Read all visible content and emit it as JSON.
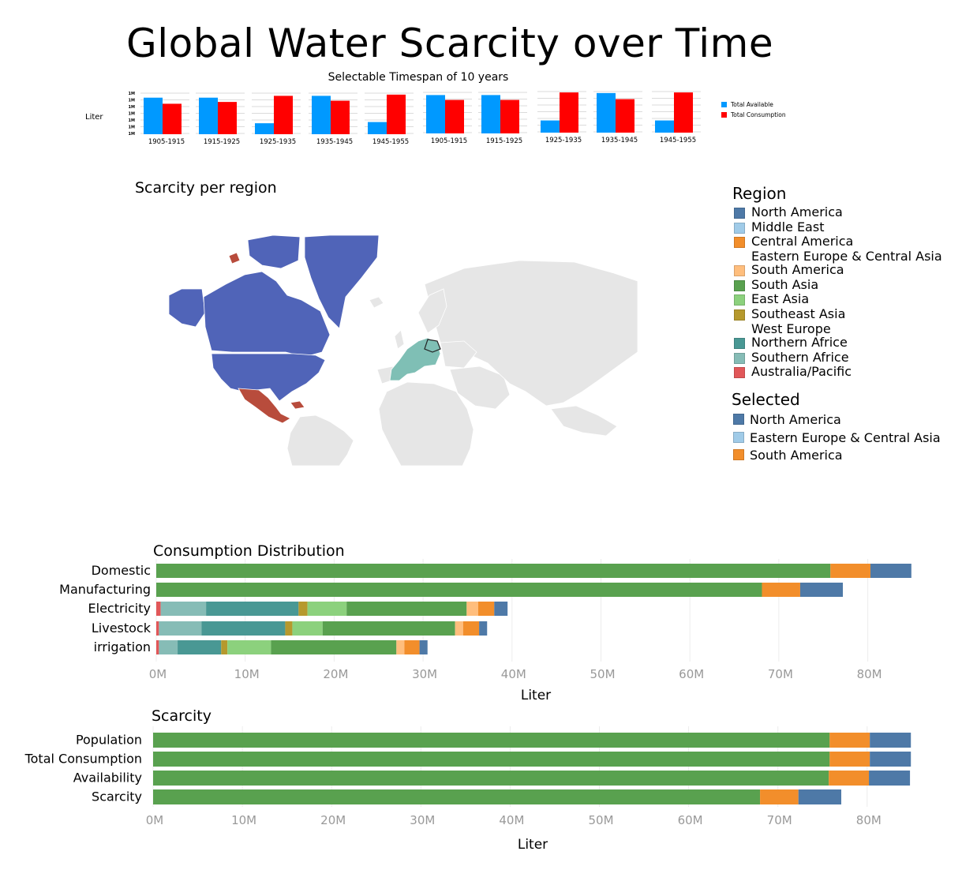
{
  "header": {
    "title": "Global Water Scarcity over Time",
    "timespan_caption": "Selectable Timespan of 10 years"
  },
  "colors": {
    "available": "#0099ff",
    "consumption": "#ff0000",
    "north_america_map": "#5064b8",
    "central_america_map": "#b84c3c",
    "europe_map": "#7fbfb5",
    "map_land": "#e6e6e6"
  },
  "chart_data": [
    {
      "id": "timespans",
      "type": "bar",
      "ylabel": "Liter",
      "ytick_labels": [
        "1M",
        "1M",
        "1M",
        "1M",
        "1M",
        "1M",
        "1M"
      ],
      "categories": [
        "1905-1915",
        "1915-1925",
        "1925-1935",
        "1935-1945",
        "1945-1955",
        "1905-1915",
        "1915-1925",
        "1925-1935",
        "1935-1945",
        "1945-1955"
      ],
      "series": [
        {
          "name": "Total Available",
          "color": "#0099ff",
          "values": [
            6,
            6,
            1.8,
            6.3,
            2,
            6.3,
            6.3,
            2,
            6.5,
            2
          ]
        },
        {
          "name": "Total Consumption",
          "color": "#ff0000",
          "values": [
            5,
            5.3,
            6.3,
            5.5,
            6.5,
            5.5,
            5.5,
            6.6,
            5.5,
            6.6
          ]
        }
      ],
      "legend_position": "right"
    },
    {
      "id": "consumption",
      "type": "bar",
      "orientation": "horizontal",
      "stacked": true,
      "title": "Consumption Distribution",
      "xlabel": "Liter",
      "xlim": [
        0,
        85000000
      ],
      "xtick_labels": [
        "0M",
        "10M",
        "20M",
        "30M",
        "40M",
        "50M",
        "60M",
        "70M",
        "80M"
      ],
      "categories": [
        "Domestic",
        "Manufacturing",
        "Electricity",
        "Livestock",
        "irrigation"
      ],
      "series": [
        {
          "color": "#e15759",
          "values": [
            0,
            0,
            0.5,
            0.3,
            0.3
          ]
        },
        {
          "color": "#86bcb6",
          "values": [
            0,
            0,
            5.1,
            4.8,
            2.1
          ]
        },
        {
          "color": "#499894",
          "values": [
            0,
            0,
            10.4,
            9.4,
            4.9
          ]
        },
        {
          "color": "#b6992d",
          "values": [
            0,
            0,
            1,
            0.8,
            0.7
          ]
        },
        {
          "color": "#8cd17d",
          "values": [
            0,
            0,
            4.4,
            3.4,
            4.9
          ]
        },
        {
          "color": "#59a14f",
          "values": [
            75.8,
            68.1,
            13.5,
            14.9,
            14.1
          ]
        },
        {
          "color": "#ffbe7d",
          "values": [
            0,
            0,
            1.3,
            0.9,
            0.9
          ]
        },
        {
          "color": "#f28e2b",
          "values": [
            4.5,
            4.3,
            1.8,
            1.8,
            1.7
          ]
        },
        {
          "color": "#4e79a7",
          "values": [
            4.6,
            4.8,
            1.5,
            0.9,
            0.9
          ]
        }
      ]
    },
    {
      "id": "scarcity",
      "type": "bar",
      "orientation": "horizontal",
      "stacked": true,
      "title": "Scarcity",
      "xlabel": "Liter",
      "xlim": [
        0,
        85000000
      ],
      "xtick_labels": [
        "0M",
        "10M",
        "20M",
        "30M",
        "40M",
        "50M",
        "60M",
        "70M",
        "80M"
      ],
      "categories": [
        "Population",
        "Total Consumption",
        "Availability",
        "Scarcity"
      ],
      "series": [
        {
          "color": "#59a14f",
          "values": [
            75.8,
            75.8,
            75.7,
            68.0
          ]
        },
        {
          "color": "#f28e2b",
          "values": [
            4.5,
            4.5,
            4.5,
            4.3
          ]
        },
        {
          "color": "#4e79a7",
          "values": [
            4.6,
            4.6,
            4.6,
            4.8
          ]
        }
      ]
    }
  ],
  "map": {
    "title": "Scarcity per region"
  },
  "legend_region": {
    "title": "Region",
    "items": [
      {
        "label": "North America",
        "color": "#4e79a7"
      },
      {
        "label": "Middle East",
        "color": "#a0cbe8"
      },
      {
        "label": "Central America",
        "color": "#f28e2b"
      },
      {
        "label": "Eastern Europe & Central Asia",
        "color": null
      },
      {
        "label": "South America",
        "color": "#ffbe7d"
      },
      {
        "label": "South Asia",
        "color": "#59a14f"
      },
      {
        "label": "East Asia",
        "color": "#8cd17d"
      },
      {
        "label": "Southeast Asia",
        "color": "#b6992d"
      },
      {
        "label": "West Europe",
        "color": null
      },
      {
        "label": "Northern Africe",
        "color": "#499894"
      },
      {
        "label": "Southern Africe",
        "color": "#86bcb6"
      },
      {
        "label": "Australia/Pacific",
        "color": "#e15759"
      }
    ]
  },
  "legend_selected": {
    "title": "Selected",
    "items": [
      {
        "label": "North America",
        "color": "#4e79a7"
      },
      {
        "label": "Eastern Europe & Central Asia",
        "color": "#a0cbe8"
      },
      {
        "label": "South America",
        "color": "#f28e2b"
      }
    ]
  }
}
